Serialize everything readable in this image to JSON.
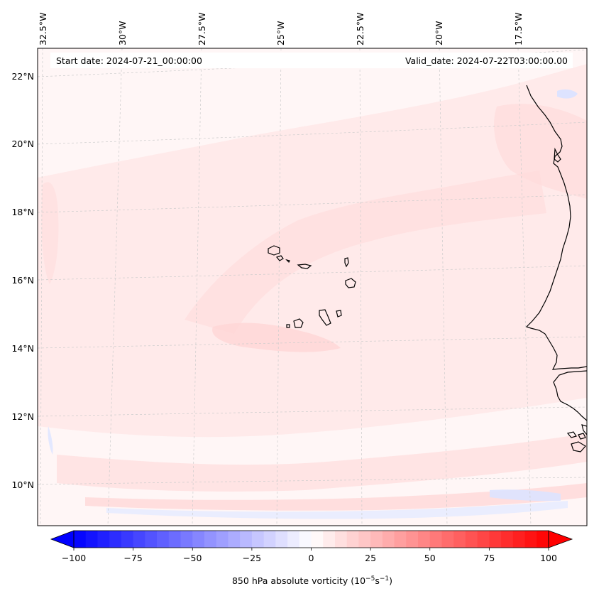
{
  "header": {
    "start_date": "Start date: 2024-07-21_00:00:00",
    "valid_date": "Valid_date: 2024-07-22T03:00:00.00"
  },
  "axes": {
    "lon_labels": [
      "32.5°W",
      "30°W",
      "27.5°W",
      "25°W",
      "22.5°W",
      "20°W",
      "17.5°W"
    ],
    "lat_labels": [
      "22°N",
      "20°N",
      "18°N",
      "16°N",
      "14°N",
      "12°N",
      "10°N"
    ]
  },
  "colorbar": {
    "min": -100,
    "max": 100,
    "ticks": [
      "−100",
      "−75",
      "−50",
      "−25",
      "0",
      "25",
      "50",
      "75",
      "100"
    ],
    "label_main": "850 hPa absolute vorticity (10",
    "label_exp1": "−5",
    "label_mid": "s",
    "label_exp2": "−1",
    "label_end": ")",
    "neg_color": "#0000ff",
    "pos_color": "#ff0000"
  },
  "colors": {
    "land_outline": "#000000",
    "gridline": "#cccccc",
    "background": "#fff6f6"
  }
}
